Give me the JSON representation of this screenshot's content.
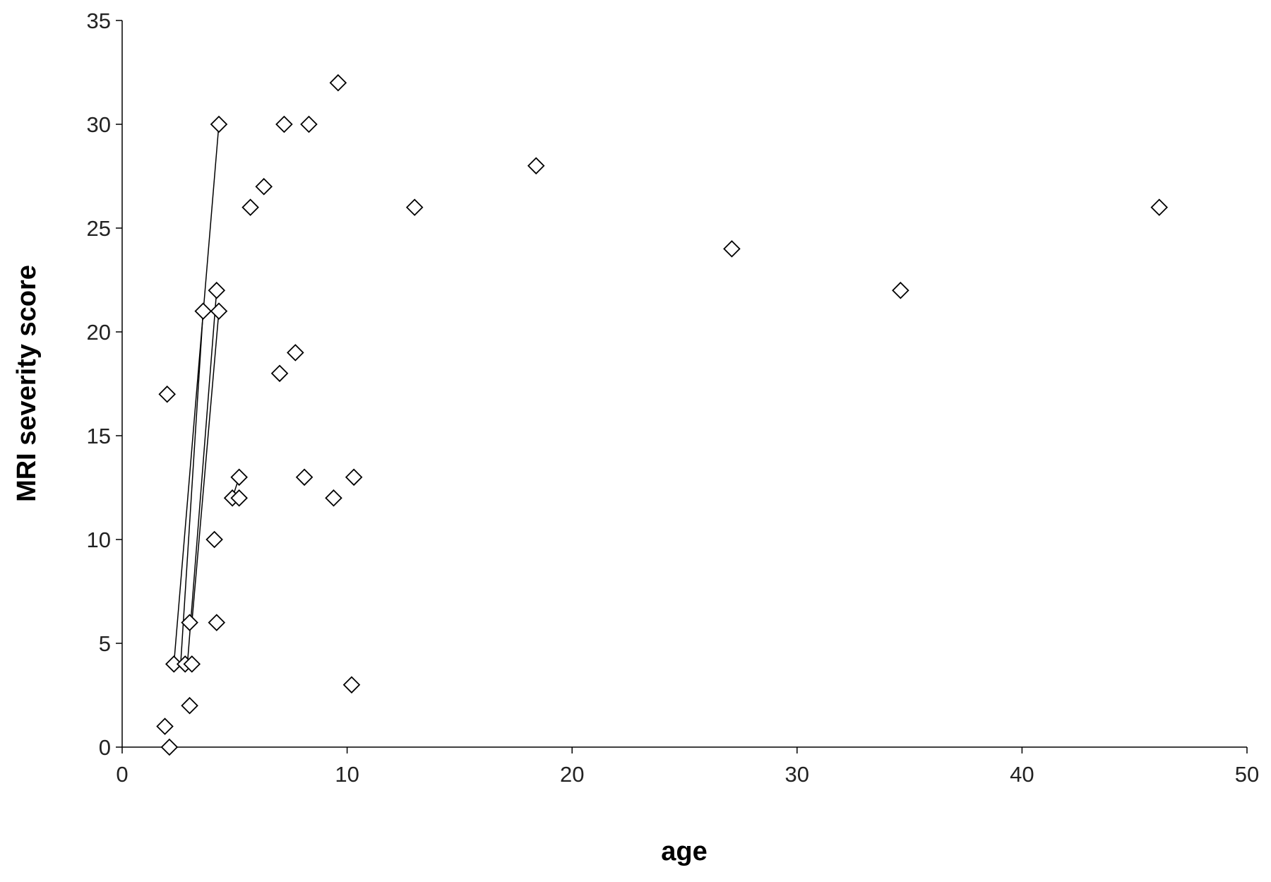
{
  "chart_data": {
    "type": "scatter",
    "xlabel": "age",
    "ylabel": "MRI severity score",
    "xlim": [
      0,
      50
    ],
    "xticks": [
      0,
      10,
      20,
      30,
      40,
      50
    ],
    "ylim": [
      0,
      35
    ],
    "yticks": [
      0,
      5,
      10,
      15,
      20,
      25,
      30,
      35
    ],
    "grid": false,
    "marker": "diamond",
    "color": "#000000",
    "series": [
      {
        "color": "#000000",
        "x": [
          1.9,
          2.1,
          2.0,
          2.3,
          2.8,
          3.1,
          3.0,
          3.0,
          3.6,
          4.1,
          4.2,
          4.2,
          4.3,
          4.3,
          4.9,
          5.2,
          5.2,
          5.7,
          6.3,
          7.0,
          7.2,
          7.7,
          8.1,
          8.3,
          9.4,
          9.6,
          10.2,
          10.3,
          13.0,
          18.4,
          27.1,
          34.6,
          46.1
        ],
        "values": [
          1,
          0,
          17,
          4,
          4,
          4,
          6,
          2,
          21,
          10,
          6,
          22,
          21,
          30,
          12,
          12,
          13,
          26,
          27,
          18,
          30,
          19,
          13,
          30,
          12,
          32,
          3,
          13,
          26,
          28,
          24,
          22,
          26
        ]
      }
    ],
    "links": [
      {
        "x": [
          2.3,
          4.3
        ],
        "values": [
          4,
          30
        ]
      },
      {
        "x": [
          2.6,
          3.6
        ],
        "values": [
          4,
          21
        ]
      },
      {
        "x": [
          2.9,
          4.2
        ],
        "values": [
          4,
          22
        ]
      },
      {
        "x": [
          3.1,
          4.3
        ],
        "values": [
          6,
          21
        ]
      },
      {
        "x": [
          4.9,
          5.2
        ],
        "values": [
          12,
          13
        ]
      }
    ]
  }
}
